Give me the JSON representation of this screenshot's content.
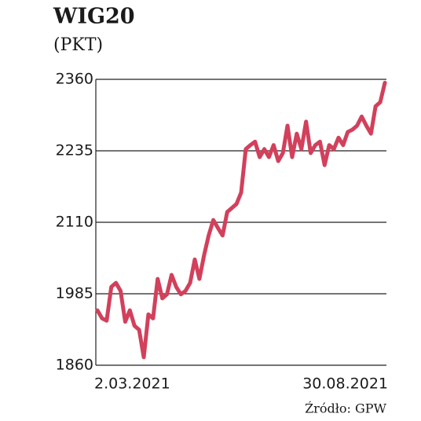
{
  "chart_data": {
    "type": "line",
    "title": "WIG20",
    "subtitle": "(PKT)",
    "source": "Źródło: GPW",
    "categories": [
      "2.03.2021",
      null,
      null,
      null,
      null,
      null,
      null,
      null,
      null,
      null,
      null,
      null,
      null,
      null,
      null,
      null,
      null,
      null,
      null,
      null,
      null,
      null,
      null,
      null,
      null,
      null,
      null,
      null,
      null,
      null,
      null,
      null,
      null,
      null,
      null,
      null,
      null,
      null,
      null,
      null,
      null,
      null,
      null,
      null,
      null,
      null,
      null,
      null,
      null,
      null,
      null,
      null,
      null,
      null,
      null,
      null,
      null,
      null,
      null,
      null,
      null,
      null,
      "30.08.2021"
    ],
    "series": [
      {
        "name": "WIG20",
        "color": "#d2405c",
        "values": [
          1956,
          1942,
          1938,
          1997,
          2004,
          1990,
          1936,
          1956,
          1929,
          1922,
          1874,
          1949,
          1942,
          2011,
          1977,
          1984,
          2018,
          1997,
          1984,
          1990,
          2004,
          2045,
          2011,
          2052,
          2087,
          2114,
          2100,
          2087,
          2128,
          2135,
          2142,
          2162,
          2238,
          2245,
          2251,
          2224,
          2238,
          2224,
          2245,
          2217,
          2231,
          2279,
          2224,
          2265,
          2238,
          2286,
          2231,
          2245,
          2251,
          2210,
          2245,
          2238,
          2258,
          2245,
          2268,
          2272,
          2279,
          2295,
          2279,
          2265,
          2313,
          2320,
          2354
        ]
      }
    ],
    "ylim": [
      1860,
      2360
    ],
    "yticks": [
      1860,
      1985,
      2110,
      2235,
      2360
    ],
    "grid": true
  }
}
